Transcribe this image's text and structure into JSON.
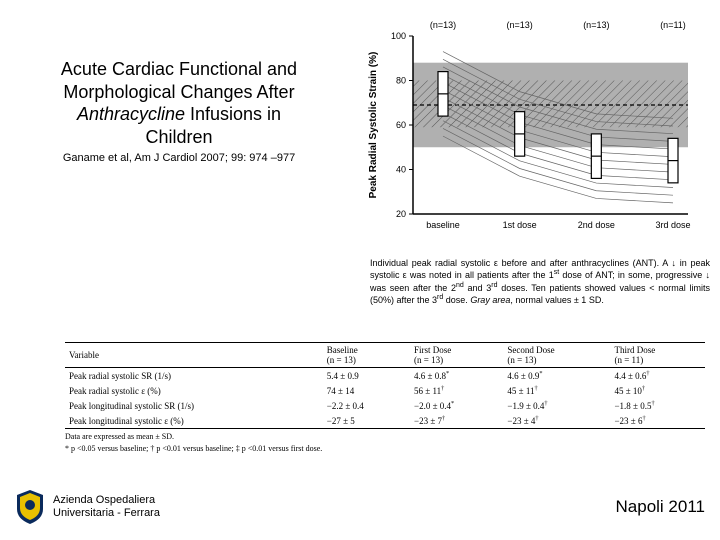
{
  "title": {
    "line1": "Acute Cardiac Functional and",
    "line2": "Morphological Changes After",
    "line3_ital": "Anthracycline",
    "line3_rest": " Infusions in",
    "line4": "Children",
    "citation": "Ganame et al, Am J Cardiol 2007; 99: 974 –977"
  },
  "chart": {
    "type": "boxplot-with-lines",
    "background_color": "#ffffff",
    "grid_color": "#e5e5e5",
    "ylabel": "Peak Radial Systolic Strain (%)",
    "ylim": [
      20,
      100
    ],
    "yticks": [
      20,
      40,
      60,
      80,
      100
    ],
    "dashed_line_y": 69,
    "gray_band": {
      "y_min": 50,
      "y_max": 88,
      "color": "#b0b0b0"
    },
    "hatched_band": {
      "y_min": 59,
      "y_max": 80,
      "style": "diagonal"
    },
    "categories": [
      "baseline",
      "1st dose",
      "2nd dose",
      "3rd dose"
    ],
    "n_labels": [
      "(n=13)",
      "(n=13)",
      "(n=13)",
      "(n=11)"
    ],
    "boxes": [
      {
        "q1": 64,
        "median": 74,
        "q3": 84
      },
      {
        "q1": 46,
        "median": 56,
        "q3": 66
      },
      {
        "q1": 36,
        "median": 46,
        "q3": 56
      },
      {
        "q1": 34,
        "median": 44,
        "q3": 54
      }
    ],
    "line_color": "#444444",
    "box_fill": "#ffffff",
    "box_stroke": "#000000",
    "patient_lines_color": "#666666",
    "label_fontsize": 9,
    "axis_fontsize": 9
  },
  "caption": {
    "text_1": "Individual peak radial systolic ε before and after anthracyclines (ANT). A ↓ in peak systolic ε  was noted in all patients after the 1",
    "sup_1": "st",
    "text_2": " dose of ANT; in some, progressive ↓ was seen after the 2",
    "sup_2": "nd",
    "text_3": " and 3",
    "sup_3": "rd",
    "text_4": " doses. Ten patients showed values < normal limits (50%) after the 3",
    "sup_4": "rd",
    "text_5": " dose. ",
    "ital_1": "Gray area",
    "text_6": ", normal values ± 1 SD."
  },
  "table": {
    "columns": [
      "Variable",
      "Baseline\n(n = 13)",
      "First Dose\n(n = 13)",
      "Second Dose\n(n = 13)",
      "Third Dose\n(n = 11)"
    ],
    "rows": [
      [
        "Peak radial systolic SR (1/s)",
        "5.4 ± 0.9",
        "4.6 ± 0.8*",
        "4.6 ± 0.9*",
        "4.4 ± 0.6†"
      ],
      [
        "Peak radial systolic ε (%)",
        "74 ± 14",
        "56 ± 11†",
        "45 ± 11†",
        "45 ± 10†"
      ],
      [
        "Peak longitudinal systolic SR (1/s)",
        "−2.2 ± 0.4",
        "−2.0 ± 0.4*",
        "−1.9 ± 0.4†",
        "−1.8 ± 0.5†"
      ],
      [
        "Peak longitudinal systolic ε (%)",
        "−27 ± 5",
        "−23 ± 7†",
        "−23 ± 4†",
        "−23 ± 6†"
      ]
    ],
    "footnote1": "Data are expressed as mean ± SD.",
    "footnote2": "* p <0.05 versus baseline; † p <0.01 versus baseline; ‡ p <0.01 versus first dose."
  },
  "footer": {
    "org_line1": "Azienda Ospedaliera",
    "org_line2": "Universitaria - Ferrara",
    "conference": "Napoli 2011",
    "logo_colors": {
      "outer": "#0a2a5c",
      "inner": "#e8c000"
    }
  }
}
